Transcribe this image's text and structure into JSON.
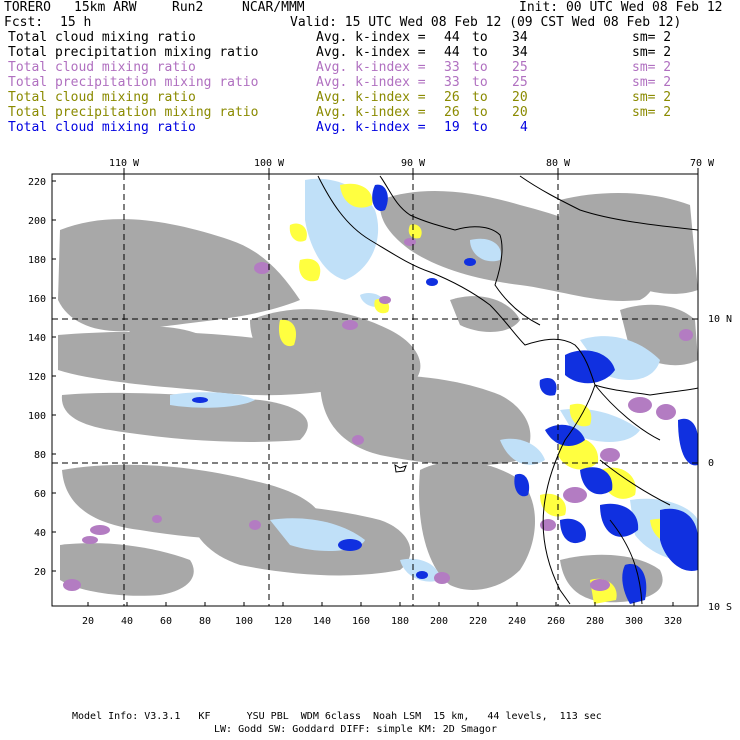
{
  "header": {
    "model": "TORERO",
    "resolution": "15km ARW",
    "run": "Run2",
    "org": "NCAR/MMM",
    "init": "Init: 00 UTC Wed 08 Feb 12",
    "fcst_label": "Fcst:",
    "fcst_value": "15 h",
    "valid": "Valid: 15 UTC Wed 08 Feb 12 (09 CST Wed 08 Feb 12)"
  },
  "legend": [
    {
      "field": "Total cloud mixing ratio",
      "kindex": "Avg. k-index =",
      "from": "44",
      "to_word": "to",
      "to": "34",
      "sm": "sm= 2",
      "color": "#000000"
    },
    {
      "field": "Total precipitation mixing ratio",
      "kindex": "Avg. k-index =",
      "from": "44",
      "to_word": "to",
      "to": "34",
      "sm": "sm= 2",
      "color": "#000000"
    },
    {
      "field": "Total cloud mixing ratio",
      "kindex": "Avg. k-index =",
      "from": "33",
      "to_word": "to",
      "to": "25",
      "sm": "sm= 2",
      "color": "#b070c0"
    },
    {
      "field": "Total precipitation mixing ratio",
      "kindex": "Avg. k-index =",
      "from": "33",
      "to_word": "to",
      "to": "25",
      "sm": "sm= 2",
      "color": "#b070c0"
    },
    {
      "field": "Total cloud mixing ratio",
      "kindex": "Avg. k-index =",
      "from": "26",
      "to_word": "to",
      "to": "20",
      "sm": "sm= 2",
      "color": "#8a8a00"
    },
    {
      "field": "Total precipitation mixing ratio",
      "kindex": "Avg. k-index =",
      "from": "26",
      "to_word": "to",
      "to": "20",
      "sm": "sm= 2",
      "color": "#8a8a00"
    },
    {
      "field": "Total cloud mixing ratio",
      "kindex": "Avg. k-index =",
      "from": "19",
      "to_word": "to",
      "to": "4",
      "sm": "",
      "color": "#0000e0"
    }
  ],
  "map": {
    "lon_labels": [
      "110 W",
      "100 W",
      "90 W",
      "80 W",
      "70 W"
    ],
    "lat_labels": [
      "10 N",
      "0",
      "10 S"
    ],
    "x_ticks": [
      "20",
      "40",
      "60",
      "80",
      "100",
      "120",
      "140",
      "160",
      "180",
      "200",
      "220",
      "240",
      "260",
      "280",
      "300",
      "320"
    ],
    "y_ticks": [
      "220",
      "200",
      "180",
      "160",
      "140",
      "120",
      "100",
      "80",
      "60",
      "40",
      "20"
    ],
    "colors": {
      "gray": "#a8a8a8",
      "purple": "#b37cc2",
      "yellow": "#ffff40",
      "light_blue": "#c0e0f8",
      "blue": "#1030e0"
    }
  },
  "footer": {
    "line1": "Model Info: V3.3.1   KF      YSU PBL  WDM 6class  Noah LSM  15 km,   44 levels,  113 sec",
    "line2": "LW: Godd SW: Goddard DIFF: simple KM: 2D Smagor"
  }
}
